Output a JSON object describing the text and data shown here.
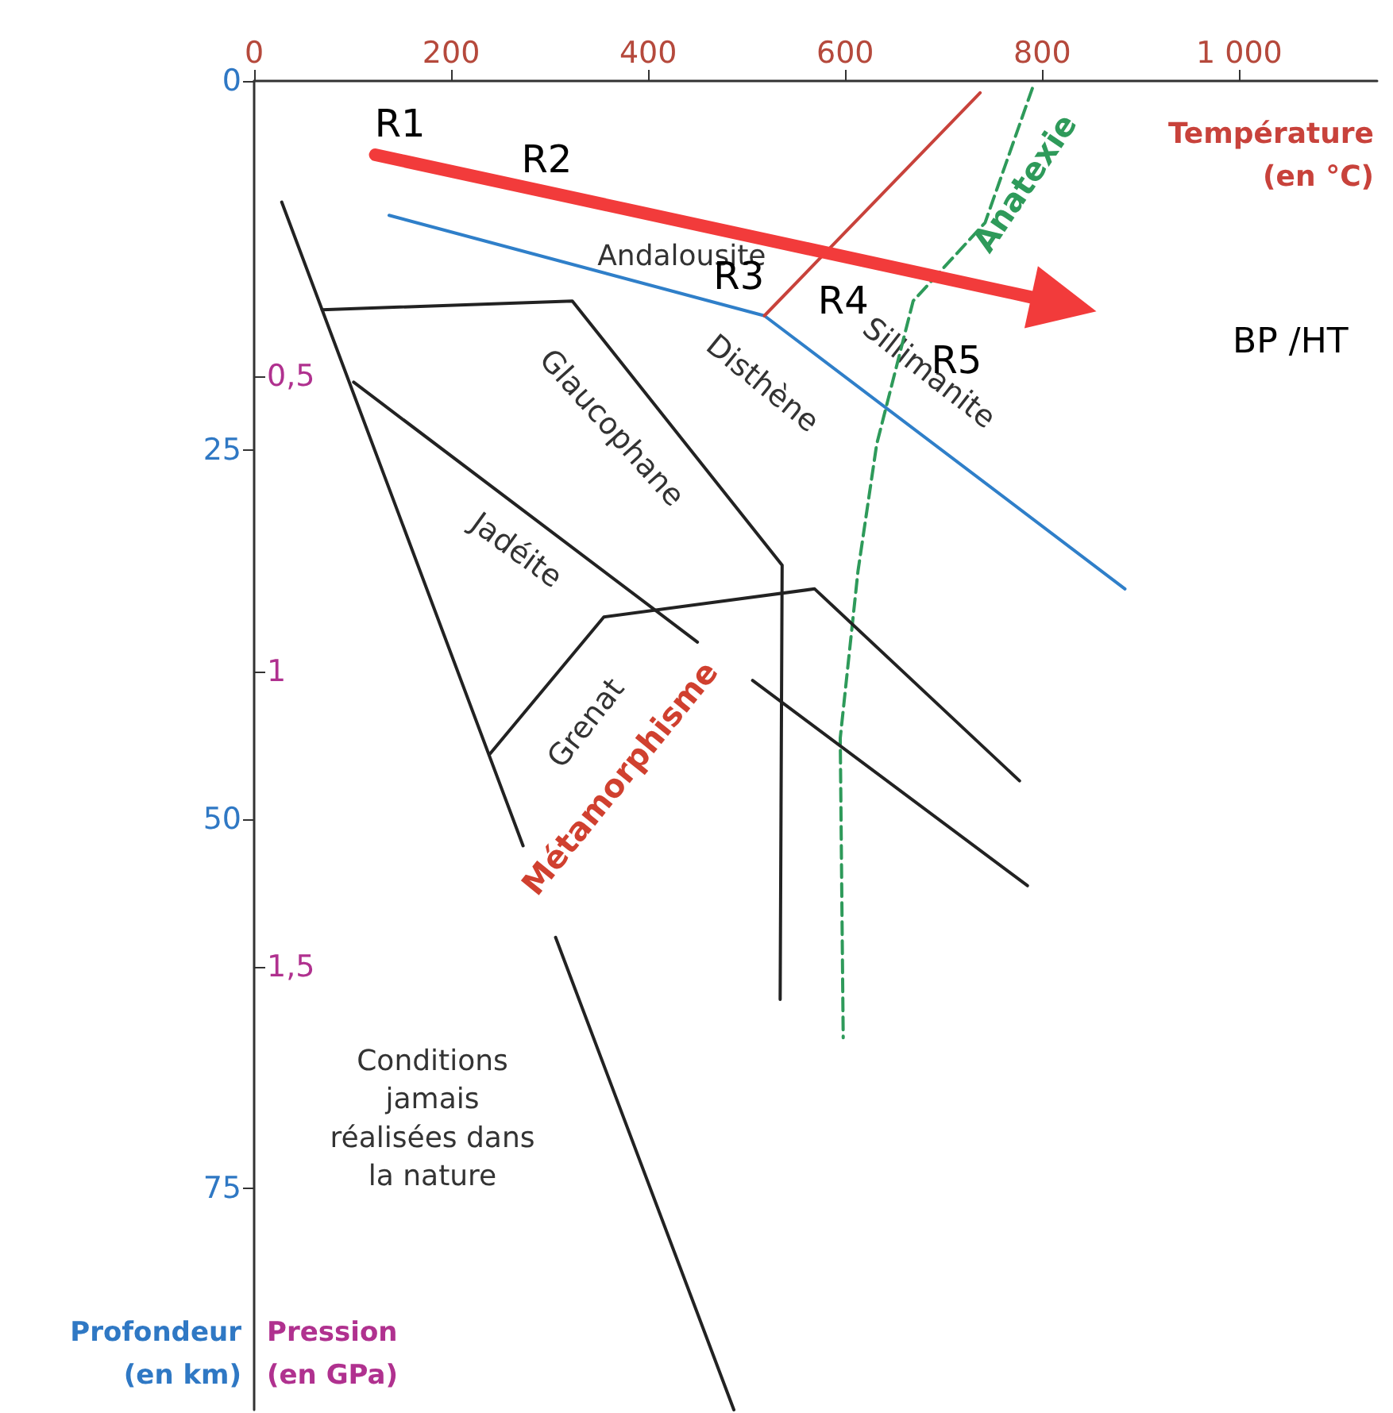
{
  "chart_data": {
    "type": "line",
    "xlabel": "Température\n(en °C)",
    "ylabel": "Profondeur\n(en km)",
    "y2label": "Pression\n(en GPa)",
    "xlim": [
      0,
      1140
    ],
    "xticks": [
      0,
      200,
      400,
      600,
      800,
      {
        "value": 1000,
        "label": "1 000"
      }
    ],
    "ylim": [
      90,
      0
    ],
    "yticks": [
      0,
      25,
      50,
      75
    ],
    "y2lim": [
      2.25,
      0
    ],
    "y2ticks": [
      {
        "value": 0.5,
        "label": "0,5"
      },
      1,
      {
        "value": 1.5,
        "label": "1,5"
      }
    ],
    "marker": "none",
    "grid": false,
    "series": [
      {
        "color": "#2f7fc9",
        "x": [
          137,
          518,
          884
        ],
        "values": [
          9.1,
          15.9,
          34.4
        ]
      },
      {
        "color": "#c8423b",
        "x": [
          518,
          737
        ],
        "values": [
          15.9,
          0.8
        ]
      },
      {
        "color": "#2e9a5a",
        "line_style": "dashed",
        "x": [
          790,
          742,
          669,
          632,
          613,
          595,
          598
        ],
        "values": [
          0.5,
          9.6,
          14.9,
          24.6,
          33.2,
          44.5,
          64.8
        ]
      },
      {
        "color": "#222222",
        "x": [
          28,
          273,
          null,
          306,
          487
        ],
        "values": [
          8.2,
          51.8,
          null,
          58,
          90
        ]
      },
      {
        "color": "#222222",
        "x": [
          69,
          323,
          536,
          534
        ],
        "values": [
          15.5,
          14.9,
          32.8,
          62.2
        ]
      },
      {
        "color": "#222222",
        "x": [
          101,
          450
        ],
        "values": [
          20.4,
          38
        ]
      },
      {
        "color": "#222222",
        "x": [
          239,
          355,
          569,
          777
        ],
        "values": [
          45.6,
          36.3,
          34.4,
          47.4
        ]
      },
      {
        "color": "#222222",
        "x": [
          506,
          785
        ],
        "values": [
          40.6,
          54.5
        ]
      }
    ],
    "annotations": [
      "Andalousite",
      "Disthène",
      "Sillimanite",
      "Glaucophane",
      "Jadéite",
      "Grenat",
      "Métamorphisme",
      "Anatexie",
      "Conditions\njamais\nréalisées dans\nla nature",
      "R1",
      "R2",
      "R3",
      "R4",
      "R5",
      "BP /HT"
    ]
  }
}
